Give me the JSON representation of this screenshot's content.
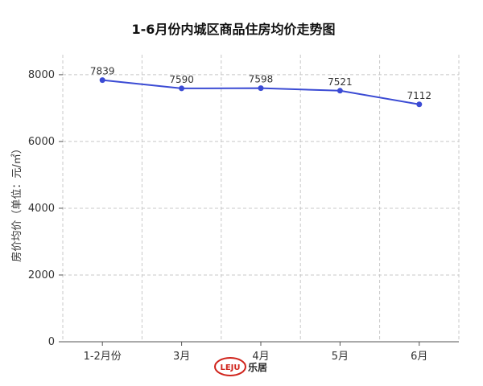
{
  "chart_data": {
    "type": "line",
    "title": "1-6月份内城区商品住房均价走势图",
    "ylabel": "房价均价（单位：元/㎡）",
    "xlabel": "",
    "categories": [
      "1-2月份",
      "3月",
      "4月",
      "5月",
      "6月"
    ],
    "series": [
      {
        "values": [
          7839,
          7590,
          7598,
          7521,
          7112
        ]
      }
    ],
    "ylim": [
      0,
      8600
    ],
    "yticks": [
      0,
      2000,
      4000,
      6000,
      8000
    ],
    "grid": true,
    "colors": {
      "line": "#3b4bd4",
      "grid": "#c8c8c8",
      "axis": "#555555"
    }
  },
  "watermark": {
    "logo_text": "LEJU",
    "name": "乐居",
    "logo_color": "#d0241c"
  }
}
